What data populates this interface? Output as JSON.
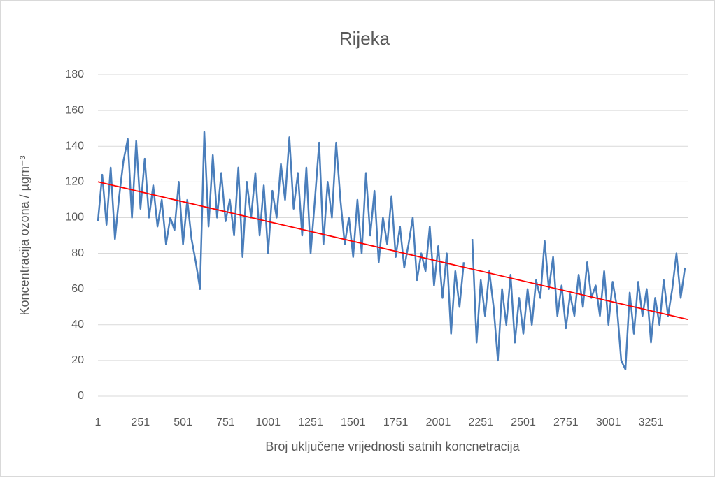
{
  "chart_data": {
    "type": "line",
    "title": "Rijeka",
    "x_label": "Broj uključene vrijednosti satnih koncnetracija",
    "y_label": "Koncentracija ozona / µgm⁻³",
    "xlim": [
      1,
      3467
    ],
    "xticks": [
      1,
      251,
      501,
      751,
      1001,
      1251,
      1501,
      1751,
      2001,
      2251,
      2501,
      2751,
      3001,
      3251
    ],
    "ylim": [
      0,
      180
    ],
    "yticks": [
      0,
      20,
      40,
      60,
      80,
      100,
      120,
      140,
      160,
      180
    ],
    "grid": true,
    "series": [
      {
        "color": "#4a7ebb",
        "x": [
          1,
          26,
          51,
          76,
          101,
          126,
          151,
          176,
          201,
          226,
          251,
          276,
          301,
          326,
          351,
          376,
          401,
          426,
          451,
          476,
          501,
          526,
          551,
          576,
          601,
          626,
          651,
          676,
          701,
          726,
          751,
          776,
          801,
          826,
          851,
          876,
          901,
          926,
          951,
          976,
          1001,
          1026,
          1051,
          1076,
          1101,
          1126,
          1151,
          1176,
          1201,
          1226,
          1251,
          1276,
          1301,
          1326,
          1351,
          1376,
          1401,
          1426,
          1451,
          1476,
          1501,
          1526,
          1551,
          1576,
          1601,
          1626,
          1651,
          1676,
          1701,
          1726,
          1751,
          1776,
          1801,
          1826,
          1851,
          1876,
          1901,
          1926,
          1951,
          1976,
          2001,
          2026,
          2051,
          2076,
          2101,
          2126,
          2151,
          2176,
          2201,
          2226,
          2251,
          2276,
          2301,
          2326,
          2351,
          2376,
          2401,
          2426,
          2451,
          2476,
          2501,
          2526,
          2551,
          2576,
          2601,
          2626,
          2651,
          2676,
          2701,
          2726,
          2751,
          2776,
          2801,
          2826,
          2851,
          2876,
          2901,
          2926,
          2951,
          2976,
          3001,
          3026,
          3051,
          3076,
          3101,
          3126,
          3151,
          3176,
          3201,
          3226,
          3251,
          3276,
          3301,
          3326,
          3351,
          3376,
          3401,
          3426,
          3451
        ],
        "values": [
          98,
          124,
          96,
          128,
          88,
          112,
          132,
          144,
          100,
          143,
          105,
          133,
          100,
          118,
          95,
          110,
          85,
          100,
          93,
          120,
          85,
          110,
          88,
          75,
          60,
          148,
          95,
          135,
          100,
          125,
          98,
          110,
          90,
          128,
          78,
          120,
          100,
          125,
          90,
          118,
          80,
          115,
          100,
          130,
          110,
          145,
          105,
          125,
          90,
          128,
          80,
          110,
          142,
          85,
          120,
          100,
          142,
          110,
          85,
          100,
          78,
          110,
          80,
          125,
          90,
          115,
          75,
          100,
          85,
          112,
          78,
          95,
          72,
          85,
          100,
          65,
          80,
          70,
          95,
          62,
          84,
          55,
          80,
          35,
          70,
          50,
          75,
          null,
          88,
          30,
          65,
          45,
          70,
          50,
          20,
          60,
          40,
          68,
          30,
          55,
          35,
          60,
          40,
          65,
          55,
          87,
          60,
          78,
          45,
          62,
          38,
          57,
          45,
          68,
          50,
          75,
          55,
          62,
          45,
          70,
          40,
          64,
          50,
          20,
          15,
          58,
          35,
          64,
          45,
          60,
          30,
          55,
          40,
          65,
          45,
          60,
          80,
          55,
          72
        ]
      },
      {
        "color": "#ff0000",
        "x": [
          1,
          3467
        ],
        "values": [
          120,
          43
        ]
      }
    ]
  }
}
